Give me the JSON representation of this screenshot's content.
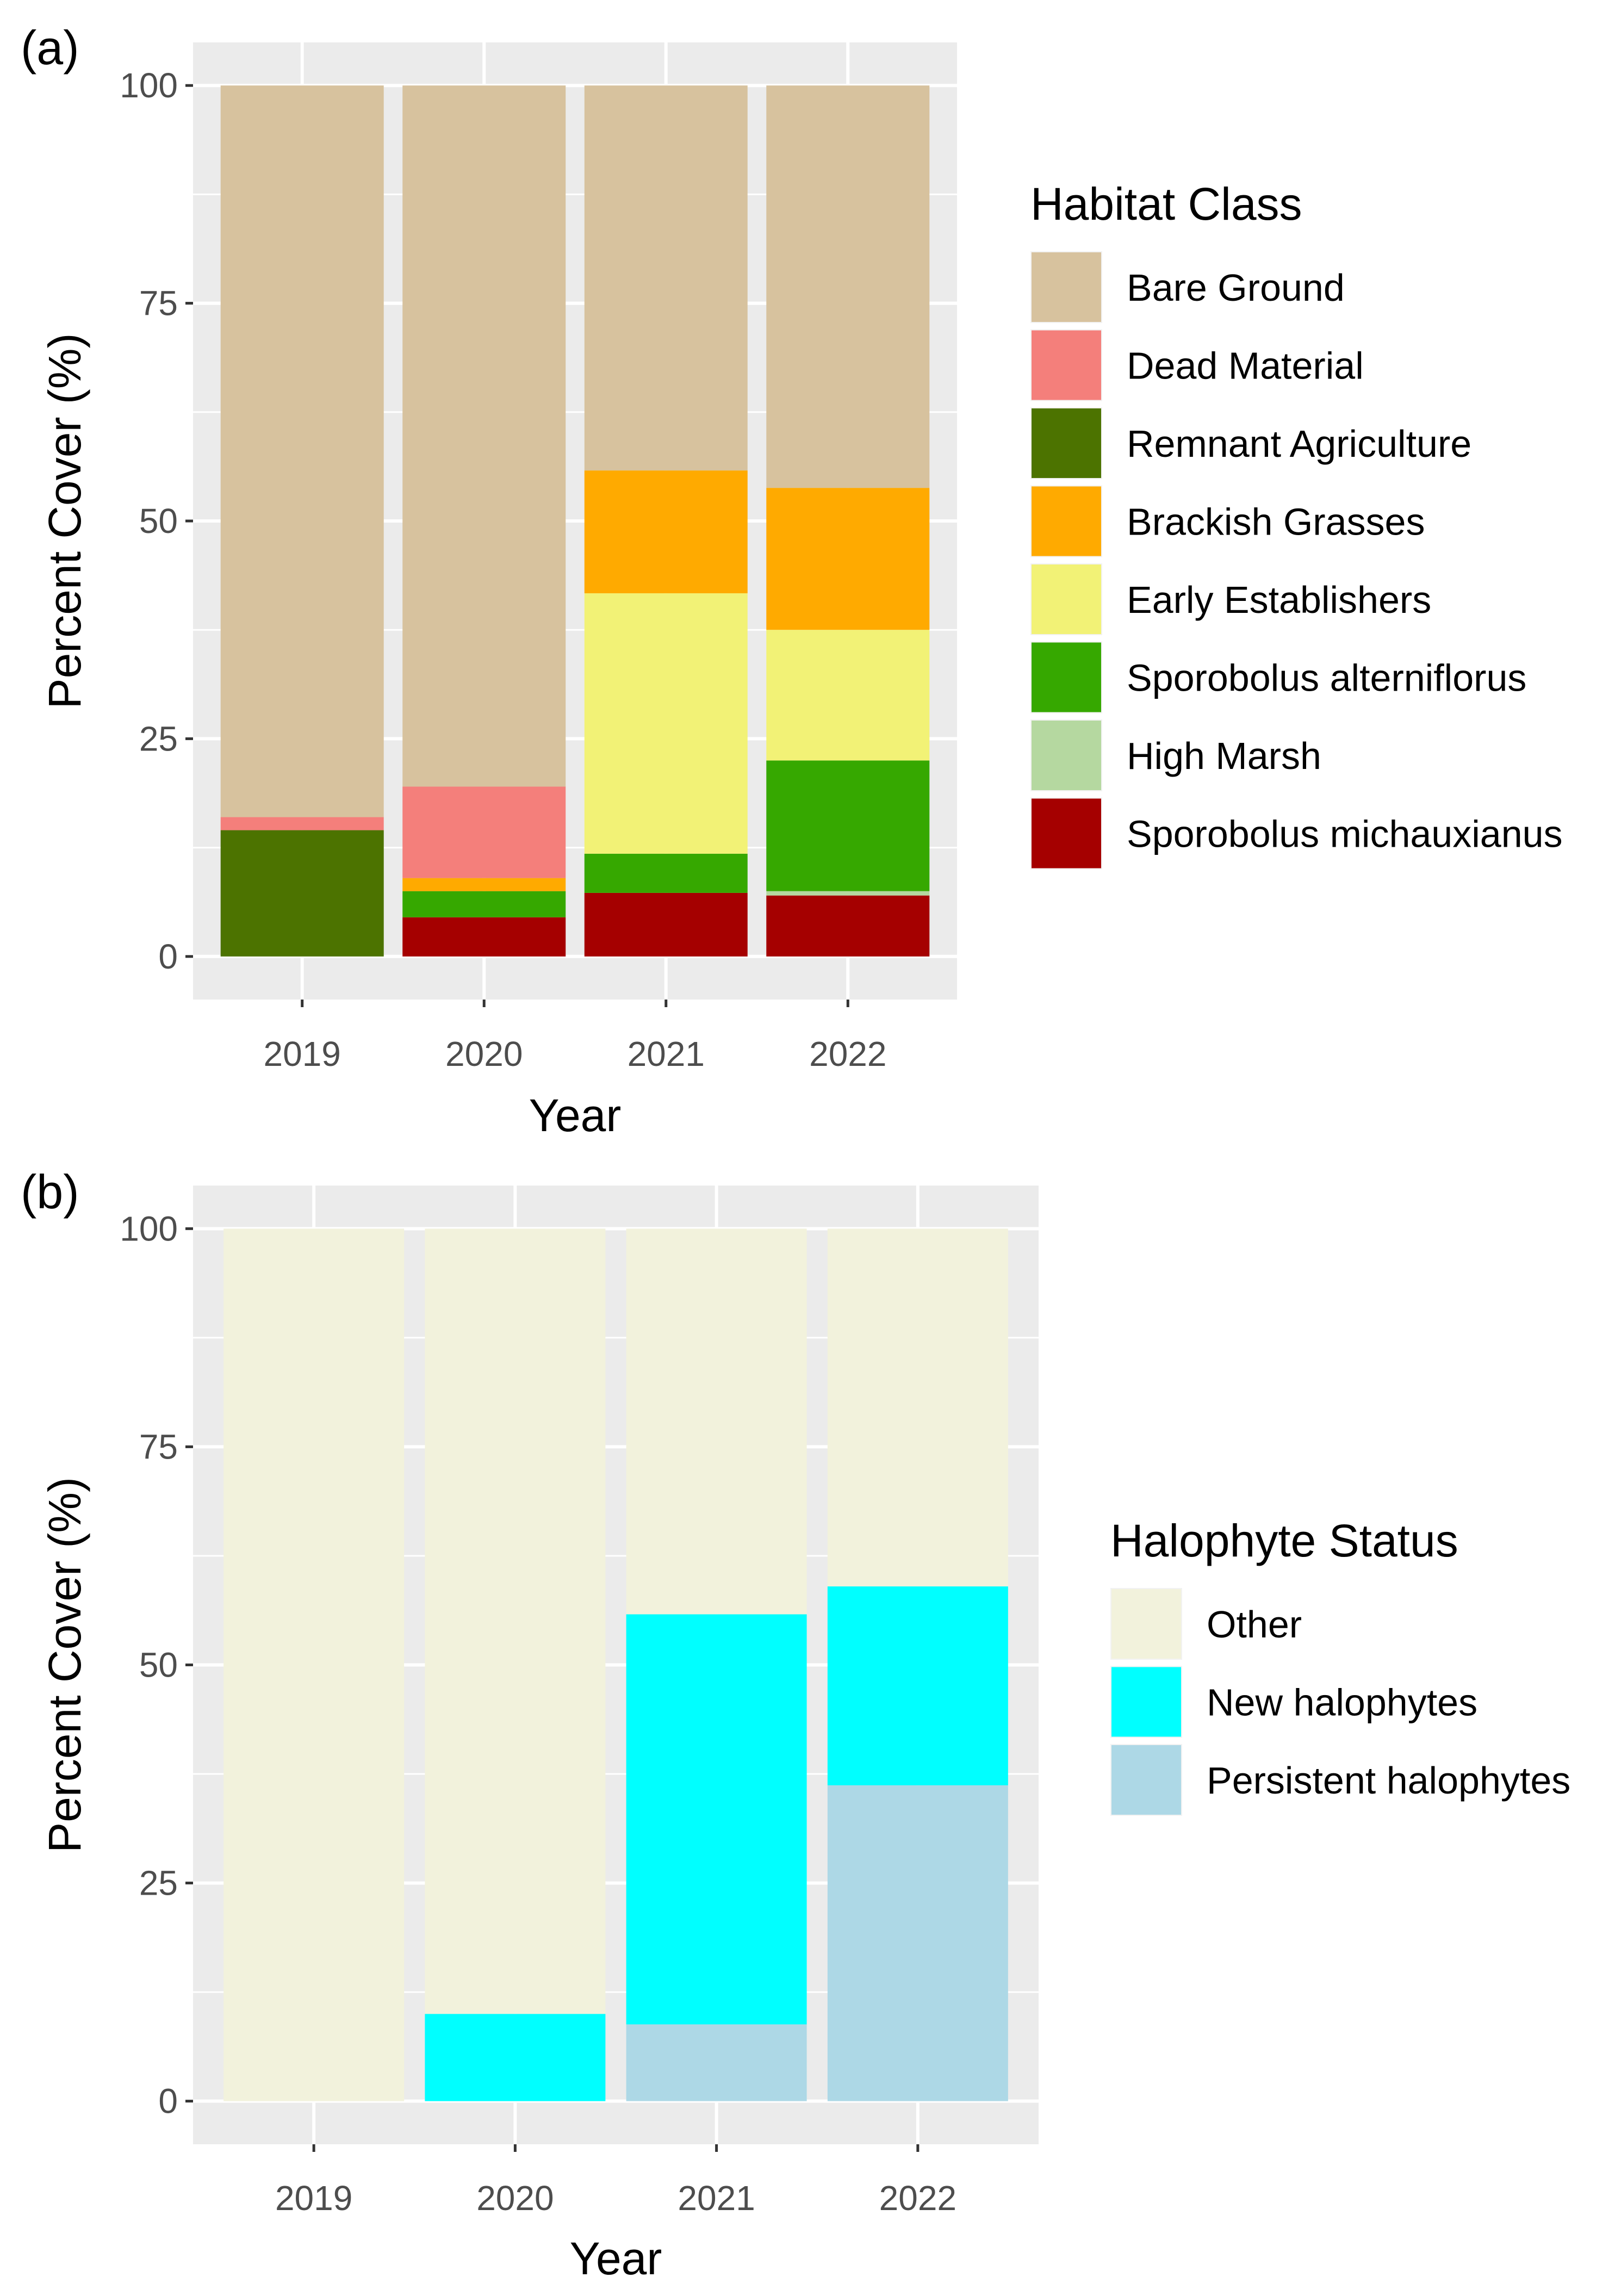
{
  "chart_data": [
    {
      "type": "bar",
      "stacked": true,
      "panel_label": "(a)",
      "categories": [
        "2019",
        "2020",
        "2021",
        "2022"
      ],
      "xlabel": "Year",
      "ylabel": "Percent Cover (%)",
      "ylim": [
        0,
        100
      ],
      "yticks": [
        0,
        25,
        50,
        75,
        100
      ],
      "grid": true,
      "legend_title": "Habitat Class",
      "legend_position": "right",
      "series": [
        {
          "name": "Sporobolus michauxianus",
          "color": "#A50000",
          "values": [
            0,
            4.5,
            7.3,
            7.0
          ]
        },
        {
          "name": "High Marsh",
          "color": "#B5D8A0",
          "values": [
            0,
            0,
            0,
            0.5
          ]
        },
        {
          "name": "Sporobolus alterniflorus",
          "color": "#36A800",
          "values": [
            0,
            3.0,
            4.5,
            15.0
          ]
        },
        {
          "name": "Early Establishers",
          "color": "#F2F276",
          "values": [
            0,
            0,
            29.9,
            15.0
          ]
        },
        {
          "name": "Brackish Grasses",
          "color": "#FFAA00",
          "values": [
            0,
            1.5,
            14.1,
            16.3
          ]
        },
        {
          "name": "Remnant Agriculture",
          "color": "#4C7300",
          "values": [
            14.5,
            0,
            0,
            0
          ]
        },
        {
          "name": "Dead Material",
          "color": "#F47F7B",
          "values": [
            1.5,
            10.5,
            0,
            0
          ]
        },
        {
          "name": "Bare Ground",
          "color": "#D7C29E",
          "values": [
            84.0,
            80.5,
            44.2,
            46.2
          ]
        }
      ],
      "legend_order": [
        "Bare Ground",
        "Dead Material",
        "Remnant Agriculture",
        "Brackish Grasses",
        "Early Establishers",
        "Sporobolus alterniflorus",
        "High Marsh",
        "Sporobolus michauxianus"
      ]
    },
    {
      "type": "bar",
      "stacked": true,
      "panel_label": "(b)",
      "categories": [
        "2019",
        "2020",
        "2021",
        "2022"
      ],
      "xlabel": "Year",
      "ylabel": "Percent Cover (%)",
      "ylim": [
        0,
        100
      ],
      "yticks": [
        0,
        25,
        50,
        75,
        100
      ],
      "grid": true,
      "legend_title": "Halophyte Status",
      "legend_position": "right",
      "series": [
        {
          "name": "Persistent halophytes",
          "color": "#ADD8E6",
          "values": [
            0,
            0,
            8.8,
            36.2
          ]
        },
        {
          "name": "New halophytes",
          "color": "#00FFFF",
          "values": [
            0,
            10.0,
            47.0,
            22.8
          ]
        },
        {
          "name": "Other",
          "color": "#F2F2DC",
          "values": [
            100,
            90.0,
            44.2,
            41.0
          ]
        }
      ],
      "legend_order": [
        "Other",
        "New halophytes",
        "Persistent halophytes"
      ]
    }
  ]
}
